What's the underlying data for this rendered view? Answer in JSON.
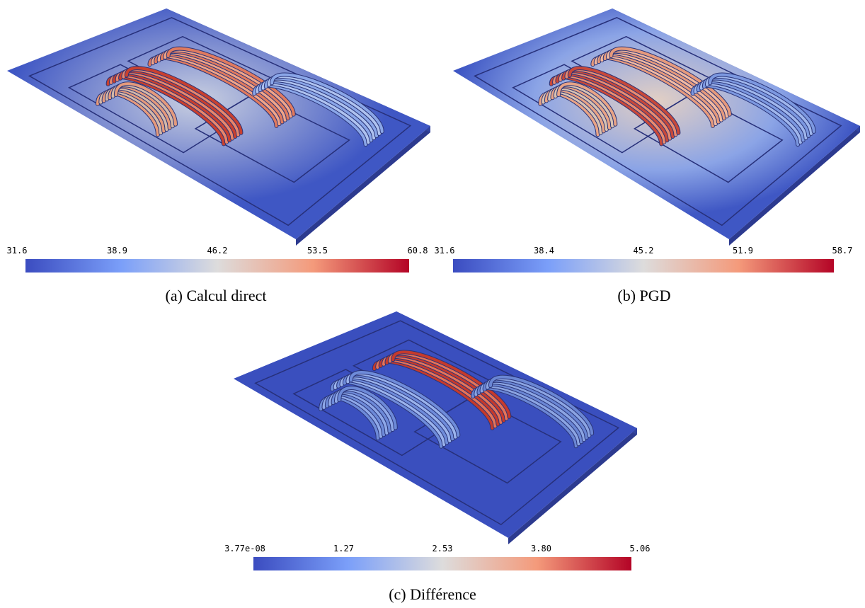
{
  "panels": [
    {
      "caption": "(a) Calcul direct",
      "colorbar": {
        "ticks": [
          "31.6",
          "38.9",
          "46.2",
          "53.5",
          "60.8"
        ]
      }
    },
    {
      "caption": "(b) PGD",
      "colorbar": {
        "ticks": [
          "31.6",
          "38.4",
          "45.2",
          "51.9",
          "58.7"
        ]
      }
    },
    {
      "caption": "(c) Différence",
      "colorbar": {
        "ticks": [
          "3.77e-08",
          "1.27",
          "2.53",
          "3.80",
          "5.06"
        ]
      }
    }
  ]
}
